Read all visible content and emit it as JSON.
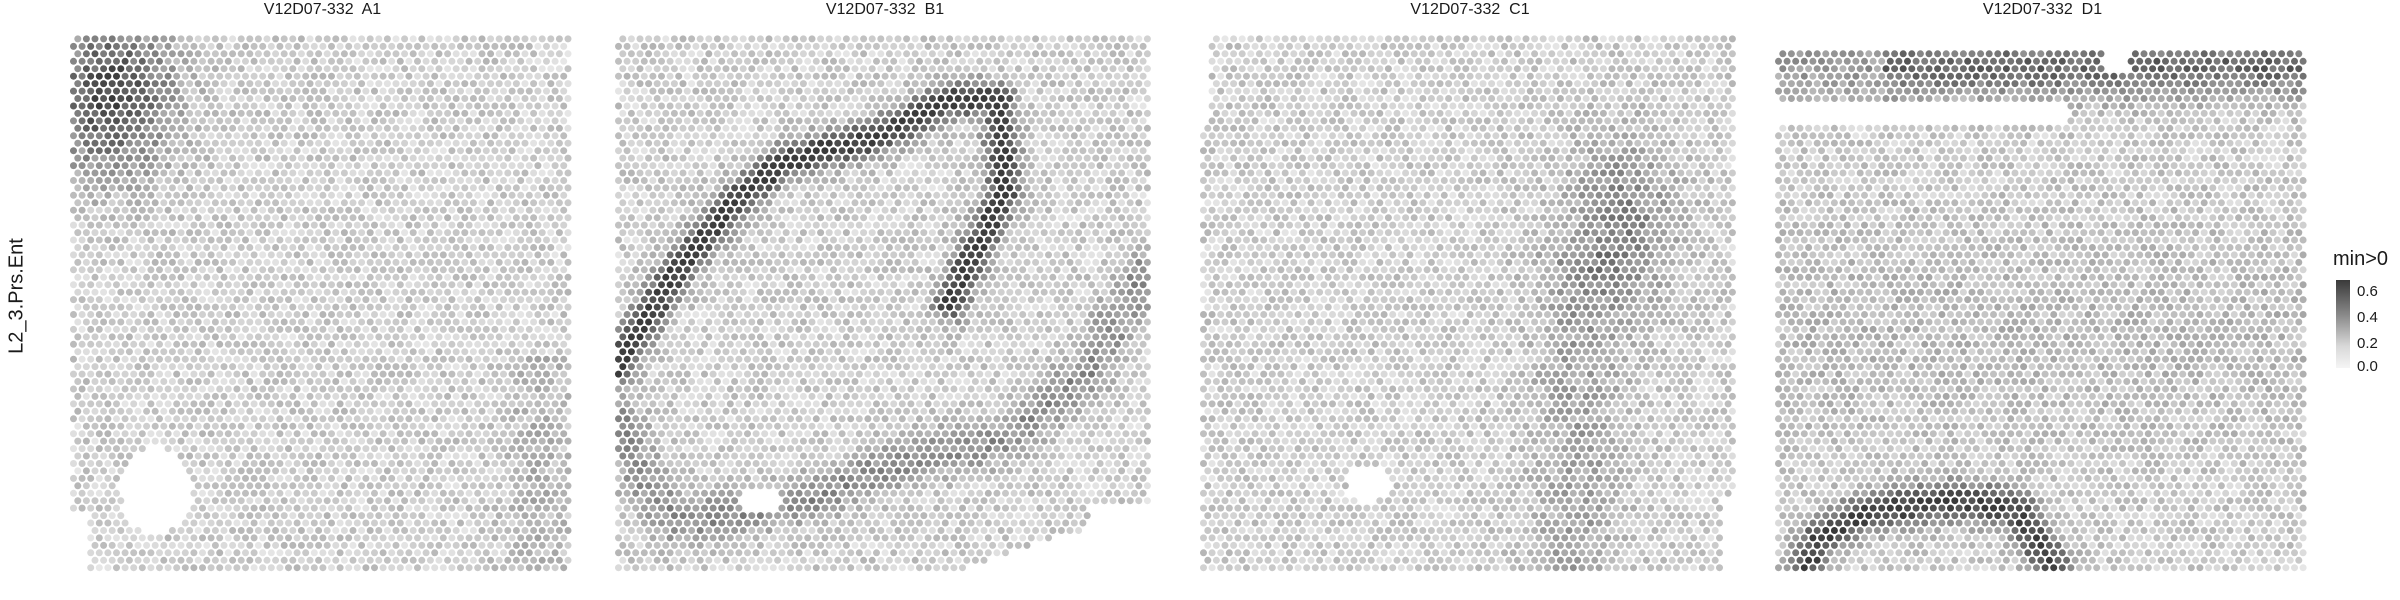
{
  "chart_data": {
    "type": "heatmap",
    "row_label": "L2_3.Prs.Ent",
    "panels": [
      {
        "title": "V12D07-332  A1",
        "pattern": "A1"
      },
      {
        "title": "V12D07-332  B1",
        "pattern": "B1"
      },
      {
        "title": "V12D07-332  C1",
        "pattern": "C1"
      },
      {
        "title": "V12D07-332  D1",
        "pattern": "D1"
      }
    ],
    "legend": {
      "title": "min>0",
      "ticks": [
        "0.6",
        "0.4",
        "0.2",
        "0.0"
      ],
      "range": [
        0,
        0.65
      ],
      "colors": [
        "#f5f5f5",
        "#3a3a3a"
      ]
    }
  }
}
